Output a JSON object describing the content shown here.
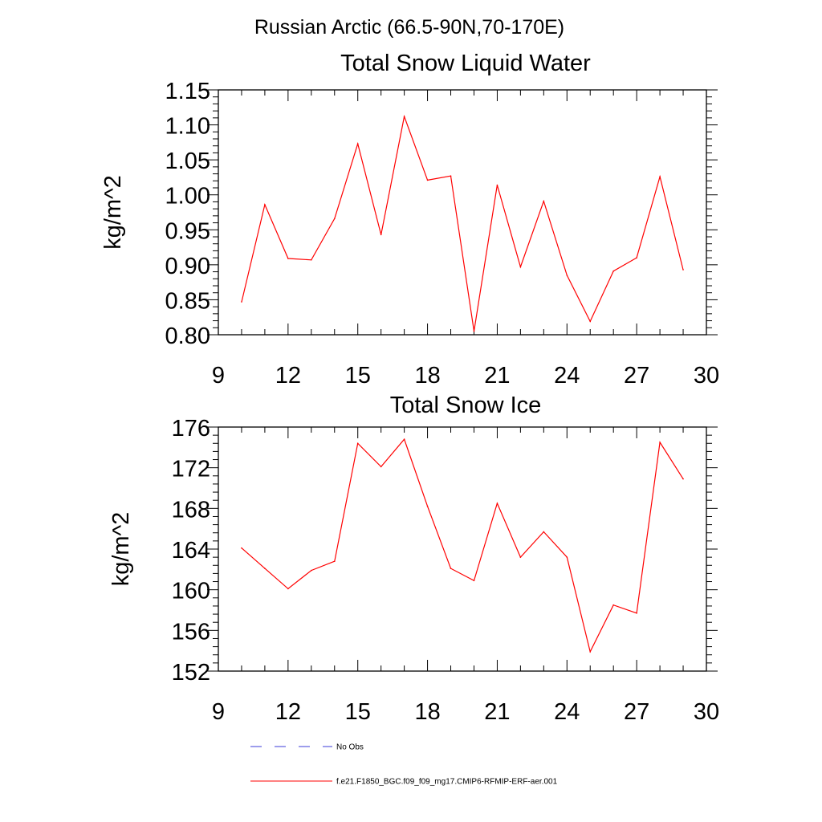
{
  "suptitle": "Russian Arctic (66.5-90N,70-170E)",
  "colors": {
    "model": "#ff0000",
    "obs": "#3b3bd9",
    "axis": "#000000"
  },
  "chart_data": [
    {
      "type": "line",
      "title": "Total Snow Liquid Water",
      "xlabel": "",
      "ylabel": "kg/m^2",
      "xlim": [
        9,
        30
      ],
      "ylim": [
        0.8,
        1.15
      ],
      "xticks": [
        "9",
        "12",
        "15",
        "18",
        "21",
        "24",
        "27",
        "30"
      ],
      "yticks": [
        "0.80",
        "0.85",
        "0.90",
        "0.95",
        "1.00",
        "1.05",
        "1.10",
        "1.15"
      ],
      "x": [
        10,
        11,
        12,
        13,
        14,
        15,
        16,
        17,
        18,
        19,
        20,
        21,
        22,
        23,
        24,
        25,
        26,
        27,
        28,
        29
      ],
      "series": [
        {
          "name": "f.e21.F1850_BGC.f09_f09_mg17.CMIP6-RFMIP-ERF-aer.001",
          "values": [
            0.847,
            0.986,
            0.909,
            0.907,
            0.966,
            1.073,
            0.943,
            1.112,
            1.021,
            1.027,
            0.805,
            1.014,
            0.897,
            0.991,
            0.885,
            0.819,
            0.891,
            0.91,
            1.026,
            0.893
          ]
        }
      ]
    },
    {
      "type": "line",
      "title": "Total Snow Ice",
      "xlabel": "",
      "ylabel": "kg/m^2",
      "xlim": [
        9,
        30
      ],
      "ylim": [
        152,
        176
      ],
      "xticks": [
        "9",
        "12",
        "15",
        "18",
        "21",
        "24",
        "27",
        "30"
      ],
      "yticks": [
        "152",
        "156",
        "160",
        "164",
        "168",
        "172",
        "176"
      ],
      "x": [
        10,
        11,
        12,
        13,
        14,
        15,
        16,
        17,
        18,
        19,
        20,
        21,
        22,
        23,
        24,
        25,
        26,
        27,
        28,
        29
      ],
      "series": [
        {
          "name": "f.e21.F1850_BGC.f09_f09_mg17.CMIP6-RFMIP-ERF-aer.001",
          "values": [
            164.1,
            162.1,
            160.1,
            161.9,
            162.8,
            174.4,
            172.1,
            174.8,
            168.2,
            162.1,
            160.9,
            168.5,
            163.2,
            165.7,
            163.2,
            153.9,
            158.5,
            157.7,
            174.5,
            170.9
          ]
        }
      ]
    }
  ],
  "legend": [
    {
      "label": "No Obs",
      "style": "dashed",
      "color": "#3b3bd9"
    },
    {
      "label": "f.e21.F1850_BGC.f09_f09_mg17.CMIP6-RFMIP-ERF-aer.001",
      "style": "solid",
      "color": "#ff0000"
    }
  ]
}
